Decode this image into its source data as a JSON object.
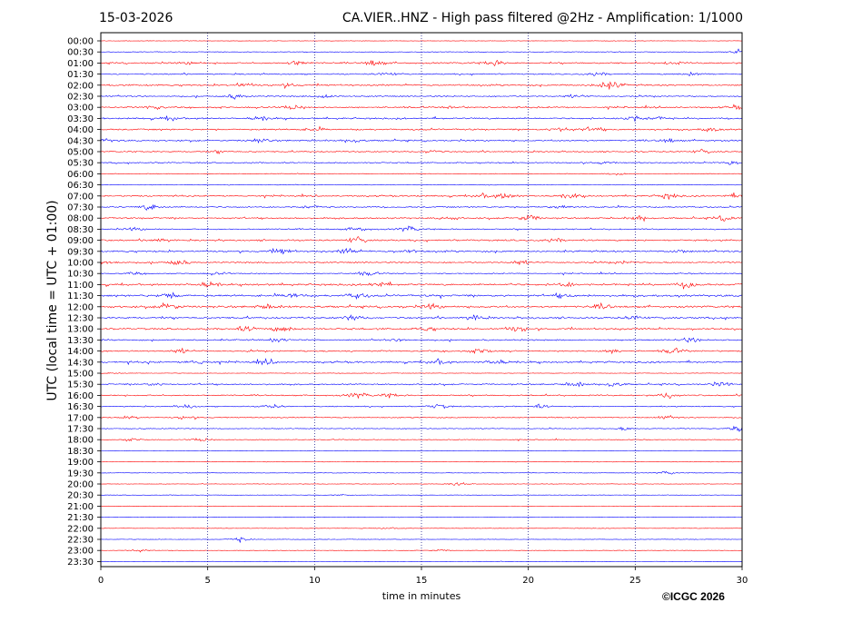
{
  "date": "15-03-2026",
  "title": "CA.VIER..HNZ - High pass filtered @2Hz - Amplification: 1/1000",
  "copyright": "©ICGC 2026",
  "colors": {
    "red": "#ff0000",
    "blue": "#0000ff",
    "frame": "#000000"
  },
  "chart_data": {
    "type": "line",
    "title": "CA.VIER..HNZ - High pass filtered @2Hz - Amplification: 1/1000",
    "xlabel": "time in minutes",
    "ylabel": "UTC (local time = UTC + 01:00)",
    "xlim": [
      0,
      30
    ],
    "xticks": [
      0,
      5,
      10,
      15,
      20,
      25,
      30
    ],
    "vertical_gridlines_at": [
      5,
      10,
      15,
      20,
      25
    ],
    "grid": "dotted vertical lines",
    "trace_colors": [
      "#ff0000",
      "#0000ff"
    ],
    "rows": [
      "00:00",
      "00:30",
      "01:00",
      "01:30",
      "02:00",
      "02:30",
      "03:00",
      "03:30",
      "04:00",
      "04:30",
      "05:00",
      "05:30",
      "06:00",
      "06:30",
      "07:00",
      "07:30",
      "08:00",
      "08:30",
      "09:00",
      "09:30",
      "10:00",
      "10:30",
      "11:00",
      "11:30",
      "12:00",
      "12:30",
      "13:00",
      "13:30",
      "14:00",
      "14:30",
      "15:00",
      "15:30",
      "16:00",
      "16:30",
      "17:00",
      "17:30",
      "18:00",
      "18:30",
      "19:00",
      "19:30",
      "20:00",
      "20:30",
      "21:00",
      "21:30",
      "22:00",
      "22:30",
      "23:00",
      "23:30"
    ],
    "noise_level": [
      0.05,
      0.15,
      0.55,
      0.45,
      0.6,
      0.45,
      0.55,
      0.6,
      0.6,
      0.55,
      0.45,
      0.4,
      0.2,
      0.1,
      0.55,
      0.5,
      0.55,
      0.45,
      0.6,
      0.65,
      0.5,
      0.35,
      0.75,
      0.8,
      0.8,
      0.7,
      0.7,
      0.5,
      0.55,
      0.65,
      0.1,
      0.5,
      0.5,
      0.35,
      0.35,
      0.25,
      0.2,
      0.1,
      0.08,
      0.1,
      0.08,
      0.06,
      0.05,
      0.05,
      0.06,
      0.08,
      0.1,
      0.04
    ],
    "bursts": [
      [],
      [
        [
          29.8,
          0.8
        ]
      ],
      [
        [
          9.2,
          0.9
        ],
        [
          12.8,
          1.0
        ],
        [
          18.4,
          0.9
        ],
        [
          4.2,
          0.5
        ],
        [
          26.8,
          0.5
        ]
      ],
      [
        [
          27.8,
          0.7
        ],
        [
          13.4,
          0.5
        ],
        [
          23.2,
          0.5
        ]
      ],
      [
        [
          23.5,
          1.2
        ],
        [
          6.6,
          0.7
        ],
        [
          8.8,
          0.6
        ],
        [
          24.0,
          0.8
        ]
      ],
      [
        [
          6.3,
          0.7
        ],
        [
          10.6,
          0.8
        ],
        [
          22.2,
          0.4
        ]
      ],
      [
        [
          9.0,
          0.8
        ],
        [
          2.5,
          0.6
        ],
        [
          16.5,
          0.5
        ],
        [
          29.8,
          0.6
        ]
      ],
      [
        [
          24.8,
          1.0
        ],
        [
          3.2,
          0.6
        ],
        [
          7.5,
          0.6
        ],
        [
          26.0,
          0.5
        ]
      ],
      [
        [
          21.5,
          0.9
        ],
        [
          23.0,
          0.8
        ],
        [
          28.5,
          0.6
        ],
        [
          10.0,
          0.5
        ]
      ],
      [
        [
          7.4,
          0.8
        ],
        [
          11.8,
          0.7
        ],
        [
          0.3,
          0.5
        ],
        [
          26.5,
          0.6
        ]
      ],
      [
        [
          28.2,
          0.7
        ],
        [
          15.5,
          0.5
        ],
        [
          5.5,
          0.5
        ]
      ],
      [
        [
          29.5,
          0.8
        ],
        [
          23.5,
          0.4
        ]
      ],
      [
        [
          24.2,
          0.5
        ]
      ],
      [],
      [
        [
          19.0,
          1.0
        ],
        [
          22.0,
          0.9
        ],
        [
          26.5,
          0.9
        ],
        [
          29.8,
          0.8
        ],
        [
          17.9,
          0.6
        ]
      ],
      [
        [
          2.3,
          1.0
        ],
        [
          9.8,
          0.5
        ],
        [
          21.5,
          0.4
        ]
      ],
      [
        [
          20.0,
          1.0
        ],
        [
          25.2,
          0.9
        ],
        [
          29.2,
          0.8
        ],
        [
          16.3,
          0.5
        ]
      ],
      [
        [
          12.0,
          0.7
        ],
        [
          14.4,
          0.9
        ],
        [
          1.6,
          0.5
        ]
      ],
      [
        [
          12.0,
          1.0
        ],
        [
          2.8,
          0.6
        ],
        [
          21.2,
          0.5
        ]
      ],
      [
        [
          8.5,
          1.0
        ],
        [
          11.5,
          0.8
        ],
        [
          27.0,
          0.6
        ],
        [
          14.5,
          0.6
        ]
      ],
      [
        [
          3.6,
          0.9
        ],
        [
          0.3,
          0.7
        ],
        [
          19.6,
          0.6
        ],
        [
          24.5,
          0.5
        ]
      ],
      [
        [
          12.5,
          0.7
        ],
        [
          5.5,
          0.6
        ],
        [
          1.5,
          0.4
        ]
      ],
      [
        [
          27.5,
          1.2
        ],
        [
          21.8,
          0.8
        ],
        [
          13.0,
          0.9
        ],
        [
          5.0,
          0.8
        ]
      ],
      [
        [
          3.2,
          1.0
        ],
        [
          12.0,
          1.0
        ],
        [
          9.0,
          0.8
        ],
        [
          21.6,
          0.7
        ]
      ],
      [
        [
          3.2,
          1.1
        ],
        [
          7.8,
          0.8
        ],
        [
          15.5,
          0.8
        ],
        [
          23.5,
          0.7
        ]
      ],
      [
        [
          11.8,
          1.0
        ],
        [
          17.5,
          0.8
        ],
        [
          25.0,
          0.6
        ]
      ],
      [
        [
          8.5,
          1.0
        ],
        [
          6.8,
          0.8
        ],
        [
          19.5,
          0.9
        ],
        [
          15.3,
          0.6
        ]
      ],
      [
        [
          8.3,
          0.6
        ],
        [
          27.5,
          0.8
        ],
        [
          14.0,
          0.4
        ]
      ],
      [
        [
          17.8,
          0.9
        ],
        [
          26.8,
          0.9
        ],
        [
          3.8,
          0.6
        ],
        [
          24.0,
          0.6
        ]
      ],
      [
        [
          4.5,
          1.0
        ],
        [
          7.8,
          0.8
        ],
        [
          18.5,
          0.8
        ],
        [
          15.8,
          0.7
        ]
      ],
      [
        [
          0.6,
          0.2
        ]
      ],
      [
        [
          22.2,
          0.9
        ],
        [
          24.0,
          0.9
        ],
        [
          29.0,
          0.7
        ],
        [
          2.5,
          0.4
        ]
      ],
      [
        [
          12.0,
          0.9
        ],
        [
          26.5,
          0.9
        ],
        [
          13.5,
          0.6
        ]
      ],
      [
        [
          4.0,
          0.7
        ],
        [
          15.8,
          0.7
        ],
        [
          20.5,
          0.6
        ],
        [
          8.0,
          0.6
        ]
      ],
      [
        [
          4.0,
          0.6
        ],
        [
          1.5,
          0.5
        ],
        [
          26.5,
          0.5
        ]
      ],
      [
        [
          29.8,
          0.8
        ],
        [
          24.5,
          0.5
        ]
      ],
      [
        [
          1.5,
          0.5
        ],
        [
          4.7,
          0.6
        ]
      ],
      [],
      [],
      [
        [
          26.5,
          0.5
        ]
      ],
      [
        [
          16.8,
          0.7
        ]
      ],
      [
        [
          11.3,
          0.2
        ]
      ],
      [],
      [],
      [
        [
          13.5,
          0.2
        ]
      ],
      [
        [
          6.5,
          0.8
        ]
      ],
      [
        [
          1.7,
          0.5
        ],
        [
          15.8,
          0.3
        ]
      ],
      []
    ]
  }
}
